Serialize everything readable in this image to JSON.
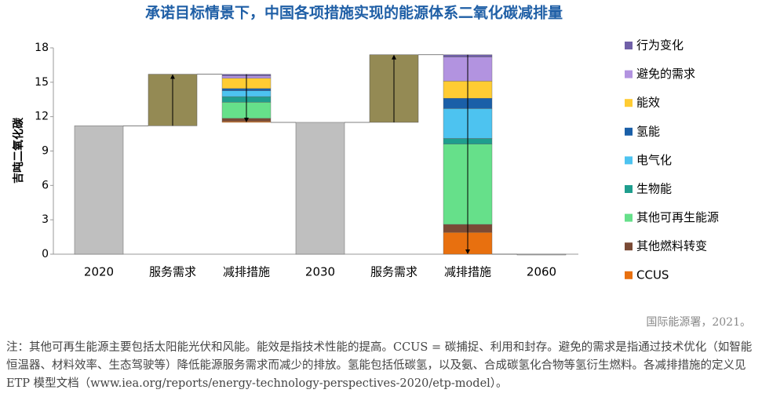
{
  "chart_data": {
    "type": "waterfall",
    "title": "承诺目标情景下，中国各项措施实现的能源体系二氧化碳减排量",
    "ylabel": "吉吨二氧化碳",
    "categories": [
      "2020",
      "服务需求",
      "减排措施",
      "2030",
      "服务需求",
      "减排措施",
      "2060"
    ],
    "totals": [
      11.2,
      null,
      null,
      11.5,
      null,
      null,
      0
    ],
    "increases": [
      null,
      4.5,
      null,
      null,
      5.9,
      null,
      null
    ],
    "total_color": "#bfbfbf",
    "increase_color": "#948a54",
    "series": [
      {
        "name": "CCUS",
        "color": "#e8700f",
        "values": [
          null,
          null,
          0.1,
          null,
          null,
          1.9,
          null
        ]
      },
      {
        "name": "其他燃料转变",
        "color": "#7a4a35",
        "values": [
          null,
          null,
          0.25,
          null,
          null,
          0.7,
          null
        ]
      },
      {
        "name": "其他可再生能源",
        "color": "#66e08a",
        "values": [
          null,
          null,
          1.4,
          null,
          null,
          7.0,
          null
        ]
      },
      {
        "name": "生物能",
        "color": "#1f9e8e",
        "values": [
          null,
          null,
          0.5,
          null,
          null,
          0.5,
          null
        ]
      },
      {
        "name": "电气化",
        "color": "#4dc3f0",
        "values": [
          null,
          null,
          0.5,
          null,
          null,
          2.6,
          null
        ]
      },
      {
        "name": "氢能",
        "color": "#1a5fa8",
        "values": [
          null,
          null,
          0.2,
          null,
          null,
          0.9,
          null
        ]
      },
      {
        "name": "能效",
        "color": "#ffcc33",
        "values": [
          null,
          null,
          0.9,
          null,
          null,
          1.5,
          null
        ]
      },
      {
        "name": "避免的需求",
        "color": "#b293e0",
        "values": [
          null,
          null,
          0.2,
          null,
          null,
          2.1,
          null
        ]
      },
      {
        "name": "行为变化",
        "color": "#7060a8",
        "values": [
          null,
          null,
          0.15,
          null,
          null,
          0.2,
          null
        ]
      }
    ],
    "ylim": [
      0,
      18
    ],
    "yticks": [
      0,
      3,
      6,
      9,
      12,
      15,
      18
    ],
    "source": "国际能源署，2021。",
    "note": "注：其他可再生能源主要包括太阳能光伏和风能。能效是指技术性能的提高。CCUS = 碳捕捉、利用和封存。避免的需求是指通过技术优化（如智能恒温器、材料效率、生态驾驶等）降低能源服务需求而减少的排放。氢能包括低碳氢，以及氨、合成碳氢化合物等氢衍生燃料。各减排措施的定义见 ETP 模型文档（www.iea.org/reports/energy-technology-perspectives-2020/etp-model）。"
  }
}
